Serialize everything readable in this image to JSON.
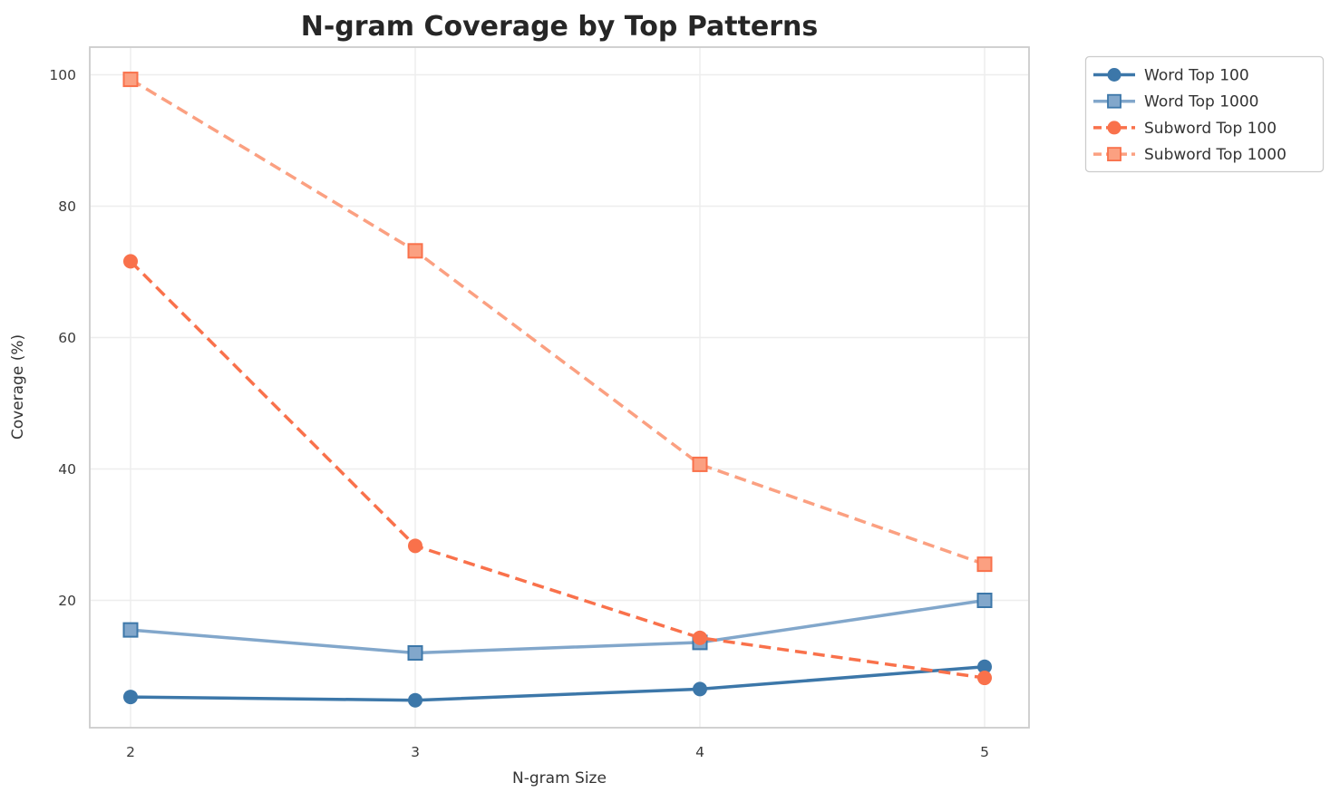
{
  "figure": {
    "title": "N-gram Coverage by Top Patterns",
    "xlabel": "N-gram Size",
    "ylabel": "Coverage (%)"
  },
  "chart_data": {
    "type": "line",
    "title": "N-gram Coverage by Top Patterns",
    "xlabel": "N-gram Size",
    "ylabel": "Coverage (%)",
    "x": [
      2,
      3,
      4,
      5
    ],
    "xticks": [
      2,
      3,
      4,
      5
    ],
    "yticks": [
      20,
      40,
      60,
      80,
      100
    ],
    "ylim": [
      0,
      104
    ],
    "grid": true,
    "legend_position": "outside-upper-right",
    "series": [
      {
        "name": "Word Top 100",
        "values": [
          5.3,
          4.8,
          6.5,
          9.9
        ],
        "color": "#3C77A9",
        "edge_color": "#3C77A9",
        "line_style": "solid",
        "marker": "circle"
      },
      {
        "name": "Word Top 1000",
        "values": [
          15.5,
          12.0,
          13.6,
          20.0
        ],
        "color": "#82A7CB",
        "edge_color": "#3C77A9",
        "line_style": "solid",
        "marker": "square"
      },
      {
        "name": "Subword Top 100",
        "values": [
          71.6,
          28.3,
          14.3,
          8.2
        ],
        "color": "#F9714B",
        "edge_color": "#F9714B",
        "line_style": "dashed",
        "marker": "circle"
      },
      {
        "name": "Subword Top 1000",
        "values": [
          99.3,
          73.2,
          40.7,
          25.5
        ],
        "color": "#FBA081",
        "edge_color": "#F9714B",
        "line_style": "dashed",
        "marker": "square"
      }
    ]
  },
  "style": {
    "background": "#ffffff",
    "grid_color": "#ededed",
    "spine_color": "#cccccc",
    "tick_color": "#3a3a3a",
    "title_color": "#262626",
    "label_color": "#333333",
    "legend_border": "#cccccc",
    "legend_background": "#ffffff"
  }
}
